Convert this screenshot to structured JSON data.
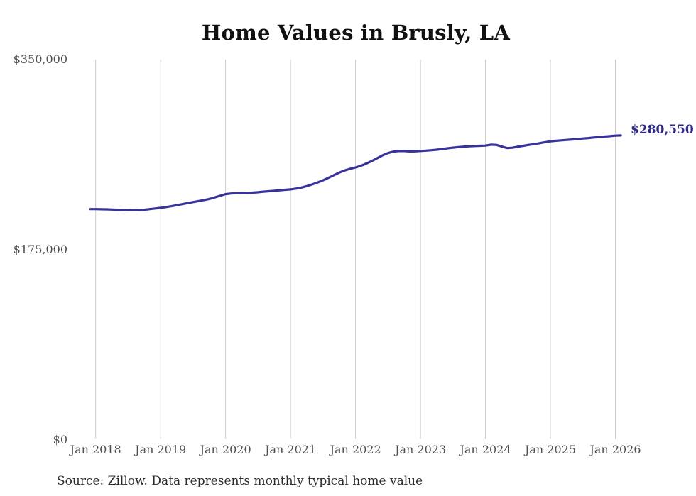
{
  "chart": {
    "title": "Home Values in Brusly, LA",
    "end_label": "$280,550",
    "source": "Source: Zillow. Data represents monthly typical home value",
    "colors": {
      "line": "#38329b",
      "end_label": "#2f2a8a",
      "gridline": "#cccccc",
      "axis_text": "#4f4f4f",
      "title_text": "#111111",
      "source_text": "#2b2b2b",
      "background": "#ffffff"
    }
  },
  "chart_data": {
    "type": "line",
    "title": "Home Values in Brusly, LA",
    "xlabel": "",
    "ylabel": "",
    "ylim": [
      0,
      350000
    ],
    "grid": "vertical-only",
    "legend": "none",
    "yticks": [
      {
        "value": 350000,
        "label": "$350,000"
      },
      {
        "value": 175000,
        "label": "$175,000"
      },
      {
        "value": 0,
        "label": "$0"
      }
    ],
    "xticklabels": [
      "Jan 2018",
      "Jan 2019",
      "Jan 2020",
      "Jan 2021",
      "Jan 2022",
      "Jan 2023",
      "Jan 2024",
      "Jan 2025",
      "Jan 2026"
    ],
    "annotation": {
      "text": "$280,550",
      "date": "2026-02",
      "value": 280550
    },
    "series": [
      {
        "name": "Typical home value",
        "color": "#38329b",
        "points": [
          [
            "2017-12",
            212600
          ],
          [
            "2018-01",
            212600
          ],
          [
            "2018-02",
            212500
          ],
          [
            "2018-03",
            212400
          ],
          [
            "2018-04",
            212200
          ],
          [
            "2018-05",
            212000
          ],
          [
            "2018-06",
            211800
          ],
          [
            "2018-07",
            211600
          ],
          [
            "2018-08",
            211600
          ],
          [
            "2018-09",
            211700
          ],
          [
            "2018-10",
            212000
          ],
          [
            "2018-11",
            212600
          ],
          [
            "2018-12",
            213200
          ],
          [
            "2019-01",
            213800
          ],
          [
            "2019-02",
            214500
          ],
          [
            "2019-03",
            215300
          ],
          [
            "2019-04",
            216200
          ],
          [
            "2019-05",
            217200
          ],
          [
            "2019-06",
            218200
          ],
          [
            "2019-07",
            219100
          ],
          [
            "2019-08",
            220000
          ],
          [
            "2019-09",
            221000
          ],
          [
            "2019-10",
            222000
          ],
          [
            "2019-11",
            223400
          ],
          [
            "2019-12",
            224900
          ],
          [
            "2020-01",
            226400
          ],
          [
            "2020-02",
            227000
          ],
          [
            "2020-03",
            227300
          ],
          [
            "2020-04",
            227400
          ],
          [
            "2020-05",
            227500
          ],
          [
            "2020-06",
            227800
          ],
          [
            "2020-07",
            228200
          ],
          [
            "2020-08",
            228700
          ],
          [
            "2020-09",
            229100
          ],
          [
            "2020-10",
            229500
          ],
          [
            "2020-11",
            230000
          ],
          [
            "2020-12",
            230400
          ],
          [
            "2021-01",
            230800
          ],
          [
            "2021-02",
            231500
          ],
          [
            "2021-03",
            232500
          ],
          [
            "2021-04",
            233800
          ],
          [
            "2021-05",
            235400
          ],
          [
            "2021-06",
            237200
          ],
          [
            "2021-07",
            239200
          ],
          [
            "2021-08",
            241500
          ],
          [
            "2021-09",
            243900
          ],
          [
            "2021-10",
            246300
          ],
          [
            "2021-11",
            248300
          ],
          [
            "2021-12",
            249800
          ],
          [
            "2022-01",
            251000
          ],
          [
            "2022-02",
            252600
          ],
          [
            "2022-03",
            254600
          ],
          [
            "2022-04",
            257000
          ],
          [
            "2022-05",
            259600
          ],
          [
            "2022-06",
            262200
          ],
          [
            "2022-07",
            264300
          ],
          [
            "2022-08",
            265600
          ],
          [
            "2022-09",
            266200
          ],
          [
            "2022-10",
            266100
          ],
          [
            "2022-11",
            265800
          ],
          [
            "2022-12",
            265900
          ],
          [
            "2023-01",
            266200
          ],
          [
            "2023-02",
            266500
          ],
          [
            "2023-03",
            266900
          ],
          [
            "2023-04",
            267400
          ],
          [
            "2023-05",
            268000
          ],
          [
            "2023-06",
            268700
          ],
          [
            "2023-07",
            269300
          ],
          [
            "2023-08",
            269800
          ],
          [
            "2023-09",
            270200
          ],
          [
            "2023-10",
            270500
          ],
          [
            "2023-11",
            270800
          ],
          [
            "2023-12",
            271000
          ],
          [
            "2024-01",
            271200
          ],
          [
            "2024-02",
            272000
          ],
          [
            "2024-03",
            271800
          ],
          [
            "2024-04",
            270300
          ],
          [
            "2024-05",
            268900
          ],
          [
            "2024-06",
            269200
          ],
          [
            "2024-07",
            270200
          ],
          [
            "2024-08",
            271000
          ],
          [
            "2024-09",
            271800
          ],
          [
            "2024-10",
            272500
          ],
          [
            "2024-11",
            273400
          ],
          [
            "2024-12",
            274300
          ],
          [
            "2025-01",
            275100
          ],
          [
            "2025-02",
            275600
          ],
          [
            "2025-03",
            276000
          ],
          [
            "2025-04",
            276400
          ],
          [
            "2025-05",
            276800
          ],
          [
            "2025-06",
            277200
          ],
          [
            "2025-07",
            277700
          ],
          [
            "2025-08",
            278100
          ],
          [
            "2025-09",
            278600
          ],
          [
            "2025-10",
            279000
          ],
          [
            "2025-11",
            279500
          ],
          [
            "2025-12",
            279900
          ],
          [
            "2026-01",
            280300
          ],
          [
            "2026-02",
            280550
          ]
        ]
      }
    ]
  }
}
